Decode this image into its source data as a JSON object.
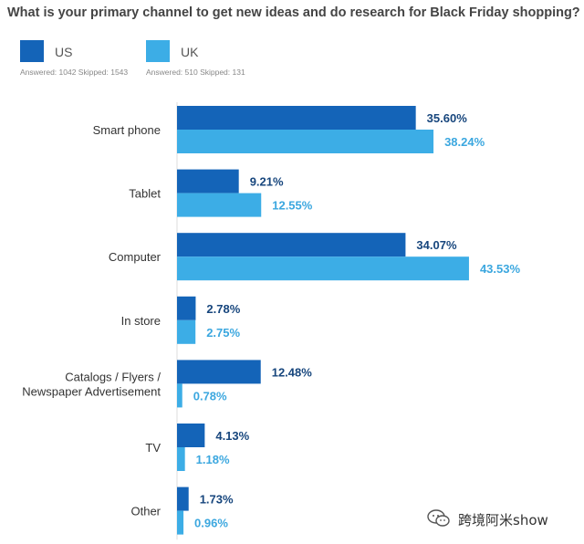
{
  "chart_data": {
    "type": "bar",
    "orientation": "horizontal",
    "title": "What is your primary channel to get new ideas and do research for Black Friday shopping?",
    "categories": [
      "Smart phone",
      "Tablet",
      "Computer",
      "In store",
      "Catalogs / Flyers / Newspaper Advertisement",
      "TV",
      "Other"
    ],
    "category_lines": [
      [
        "Smart phone"
      ],
      [
        "Tablet"
      ],
      [
        "Computer"
      ],
      [
        "In store"
      ],
      [
        "Catalogs / Flyers /",
        "Newspaper Advertisement"
      ],
      [
        "TV"
      ],
      [
        "Other"
      ]
    ],
    "series": [
      {
        "name": "US",
        "color": "#1464b8",
        "label_color": "#17467d",
        "answered_text": "Answered: 1042  Skipped: 1543",
        "values": [
          35.6,
          9.21,
          34.07,
          2.78,
          12.48,
          4.13,
          1.73
        ]
      },
      {
        "name": "UK",
        "color": "#3cade6",
        "label_color": "#3ba7df",
        "answered_text": "Answered: 510  Skipped: 131",
        "values": [
          38.24,
          12.55,
          43.53,
          2.75,
          0.78,
          1.18,
          0.96
        ]
      }
    ],
    "value_suffix": "%",
    "xlim": [
      0,
      45
    ],
    "grid": false,
    "legend": "top-left"
  },
  "watermark": {
    "text": "跨境阿米show",
    "icon": "wechat-icon"
  }
}
